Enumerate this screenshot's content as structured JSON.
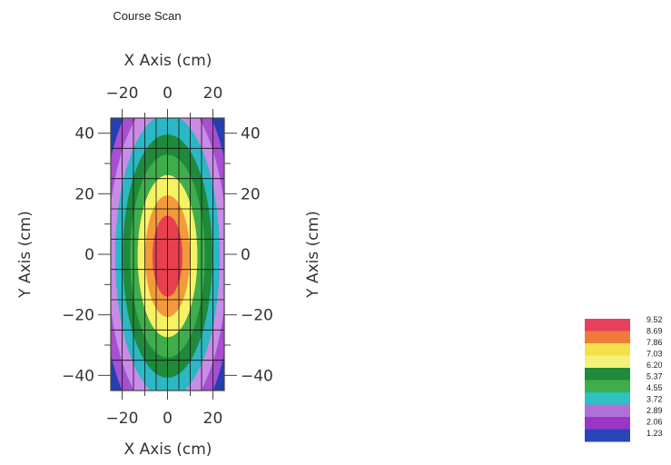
{
  "chart_data": {
    "type": "heatmap",
    "title": "Course Scan",
    "xlabel": "X Axis (cm)",
    "ylabel": "Y Axis (cm)",
    "xlim": [
      -25,
      25
    ],
    "ylim": [
      -45,
      45
    ],
    "xticks": [
      -20,
      0,
      20
    ],
    "yticks": [
      -40,
      -20,
      0,
      20,
      40
    ],
    "xtick_labels": [
      "−20",
      "0",
      "20"
    ],
    "ytick_labels": [
      "−40",
      "−20",
      "0",
      "20",
      "40"
    ],
    "grid": true,
    "grid_x": [
      -25,
      -20,
      -15,
      -10,
      -5,
      0,
      5,
      10,
      15,
      20,
      25
    ],
    "grid_y": [
      -45,
      -35,
      -25,
      -15,
      -5,
      5,
      15,
      25,
      35,
      45
    ],
    "peak_value": 9.1,
    "peak_center": [
      0,
      0
    ],
    "legend_position": "bottom-right",
    "color_scale": {
      "levels": [
        "9.52",
        "8.69",
        "7.86",
        "7.03",
        "6.20",
        "5.37",
        "4.55",
        "3.72",
        "2.89",
        "2.06",
        "1.23"
      ],
      "colors": [
        "#e8405a",
        "#f07a3a",
        "#f6e04a",
        "#f2f27a",
        "#1f8a3a",
        "#3dae4a",
        "#2fc0c0",
        "#b070d8",
        "#9a36c6",
        "#2a45b8",
        "#1a3aa8"
      ]
    },
    "contour_bands": [
      {
        "range": "below 2.89",
        "color": "#2340b0"
      },
      {
        "range": "2.89-3.72",
        "color": "#a64fd0"
      },
      {
        "range": "3.72-4.55",
        "color": "#c98be6"
      },
      {
        "range": "4.55-5.37",
        "color": "#2bb8c4"
      },
      {
        "range": "5.37-6.20",
        "color": "#1f8a3a"
      },
      {
        "range": "6.20-7.03",
        "color": "#3fae4a"
      },
      {
        "range": "7.03-7.86",
        "color": "#f7f263"
      },
      {
        "range": "7.86-8.69",
        "color": "#f39a3c"
      },
      {
        "range": "above 8.69",
        "color": "#e8404f"
      }
    ]
  }
}
